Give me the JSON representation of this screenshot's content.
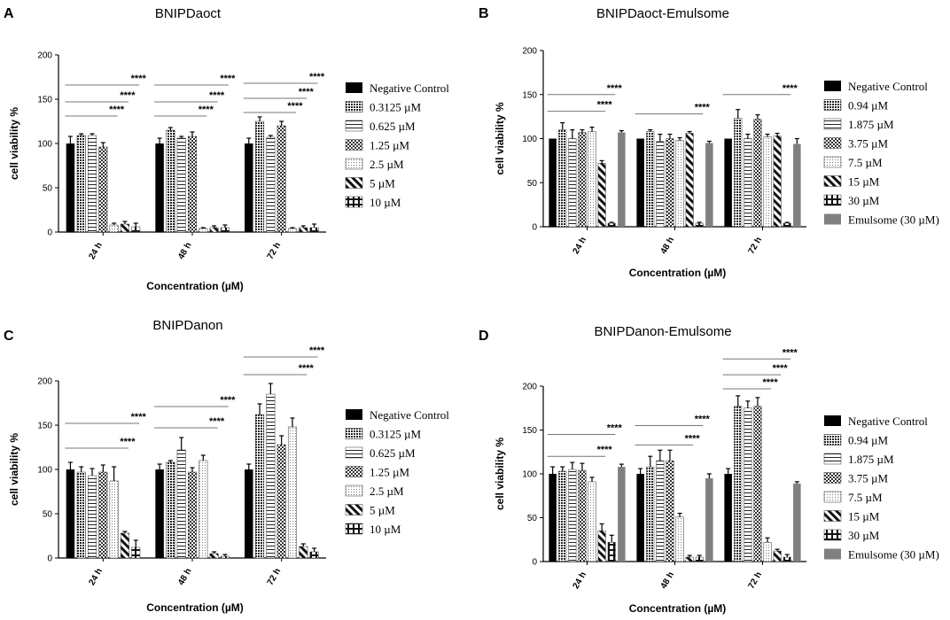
{
  "chart_data": [
    {
      "panel": "A",
      "type": "bar",
      "title": "BNIPDaoct",
      "xlabel": "Concentration (µM)",
      "ylabel": "cell viability %",
      "ylim": [
        0,
        200
      ],
      "yticks": [
        0,
        50,
        100,
        150,
        200
      ],
      "categories": [
        "24 h",
        "48 h",
        "72 h"
      ],
      "series": [
        {
          "name": "Negative Control",
          "pattern": "solid",
          "values": [
            100,
            100,
            100
          ],
          "errors": [
            8,
            6,
            6
          ]
        },
        {
          "name": "0.3125 µM",
          "pattern": "dots",
          "values": [
            109,
            115,
            125
          ],
          "errors": [
            2,
            3,
            5
          ]
        },
        {
          "name": "0.625 µM",
          "pattern": "hlines",
          "values": [
            109,
            106,
            107
          ],
          "errors": [
            2,
            2,
            2
          ]
        },
        {
          "name": "1.25 µM",
          "pattern": "checker",
          "values": [
            96,
            108,
            120
          ],
          "errors": [
            5,
            5,
            5
          ]
        },
        {
          "name": "2.5 µM",
          "pattern": "light",
          "values": [
            8,
            4,
            4
          ],
          "errors": [
            2,
            1,
            1
          ]
        },
        {
          "name": "5 µM",
          "pattern": "diag",
          "values": [
            9,
            5,
            5
          ],
          "errors": [
            3,
            2,
            2
          ]
        },
        {
          "name": "10 µM",
          "pattern": "cross",
          "values": [
            6,
            5,
            5
          ],
          "errors": [
            4,
            3,
            4
          ]
        }
      ],
      "significance": [
        {
          "group": 0,
          "from": 0,
          "to": 6,
          "y": 166,
          "label": "****"
        },
        {
          "group": 0,
          "from": 0,
          "to": 5,
          "y": 147,
          "label": "****"
        },
        {
          "group": 0,
          "from": 0,
          "to": 4,
          "y": 131,
          "label": "****"
        },
        {
          "group": 1,
          "from": 0,
          "to": 6,
          "y": 166,
          "label": "****"
        },
        {
          "group": 1,
          "from": 0,
          "to": 5,
          "y": 147,
          "label": "****"
        },
        {
          "group": 1,
          "from": 0,
          "to": 4,
          "y": 131,
          "label": "****"
        },
        {
          "group": 2,
          "from": 0,
          "to": 6,
          "y": 168,
          "label": "****"
        },
        {
          "group": 2,
          "from": 0,
          "to": 5,
          "y": 151,
          "label": "****"
        },
        {
          "group": 2,
          "from": 0,
          "to": 4,
          "y": 135,
          "label": "****"
        }
      ]
    },
    {
      "panel": "B",
      "type": "bar",
      "title": "BNIPDaoct-Emulsome",
      "xlabel": "Concentration (µM)",
      "ylabel": "cell viability %",
      "ylim": [
        0,
        200
      ],
      "yticks": [
        0,
        50,
        100,
        150,
        200
      ],
      "categories": [
        "24 h",
        "48 h",
        "72 h"
      ],
      "series": [
        {
          "name": "Negative Control",
          "pattern": "solid",
          "values": [
            100,
            100,
            100
          ],
          "errors": [
            0,
            0,
            0
          ]
        },
        {
          "name": "0.94 µM",
          "pattern": "dots",
          "values": [
            110,
            108,
            123
          ],
          "errors": [
            8,
            2,
            10
          ]
        },
        {
          "name": "1.875 µM",
          "pattern": "hlines",
          "values": [
            100,
            97,
            100
          ],
          "errors": [
            10,
            8,
            5
          ]
        },
        {
          "name": "3.75 µM",
          "pattern": "checker",
          "values": [
            107,
            100,
            122
          ],
          "errors": [
            3,
            5,
            5
          ]
        },
        {
          "name": "7.5 µM",
          "pattern": "light",
          "values": [
            108,
            98,
            102
          ],
          "errors": [
            5,
            3,
            3
          ]
        },
        {
          "name": "15 µM",
          "pattern": "diag",
          "values": [
            72,
            106,
            103
          ],
          "errors": [
            3,
            2,
            3
          ]
        },
        {
          "name": "30 µM",
          "pattern": "cross",
          "values": [
            4,
            4,
            4
          ],
          "errors": [
            1,
            1,
            1
          ]
        },
        {
          "name": "Emulsome (30 µM)",
          "pattern": "gray",
          "values": [
            107,
            95,
            94
          ],
          "errors": [
            2,
            2,
            6
          ]
        }
      ],
      "significance": [
        {
          "group": 0,
          "from": 0,
          "to": 6,
          "y": 150,
          "label": "****"
        },
        {
          "group": 0,
          "from": 0,
          "to": 5,
          "y": 131,
          "label": "****"
        },
        {
          "group": 1,
          "from": 0,
          "to": 6,
          "y": 128,
          "label": "****"
        },
        {
          "group": 2,
          "from": 0,
          "to": 6,
          "y": 150,
          "label": "****"
        }
      ]
    },
    {
      "panel": "C",
      "type": "bar",
      "title": "BNIPDanon",
      "xlabel": "Concentration (µM)",
      "ylabel": "cell viability %",
      "ylim": [
        0,
        200
      ],
      "yticks": [
        0,
        50,
        100,
        150,
        200
      ],
      "categories": [
        "24 h",
        "48 h",
        "72 h"
      ],
      "series": [
        {
          "name": "Negative Control",
          "pattern": "solid",
          "values": [
            100,
            100,
            100
          ],
          "errors": [
            8,
            6,
            6
          ]
        },
        {
          "name": "0.3125 µM",
          "pattern": "dots",
          "values": [
            97,
            108,
            162
          ],
          "errors": [
            6,
            2,
            12
          ]
        },
        {
          "name": "0.625 µM",
          "pattern": "hlines",
          "values": [
            93,
            122,
            185
          ],
          "errors": [
            8,
            14,
            12
          ]
        },
        {
          "name": "1.25 µM",
          "pattern": "checker",
          "values": [
            97,
            97,
            128
          ],
          "errors": [
            8,
            5,
            10
          ]
        },
        {
          "name": "2.5 µM",
          "pattern": "light",
          "values": [
            87,
            110,
            148
          ],
          "errors": [
            16,
            6,
            10
          ]
        },
        {
          "name": "5 µM",
          "pattern": "diag",
          "values": [
            28,
            5,
            13
          ],
          "errors": [
            2,
            2,
            3
          ]
        },
        {
          "name": "10 µM",
          "pattern": "cross",
          "values": [
            12,
            2,
            7
          ],
          "errors": [
            8,
            2,
            4
          ]
        }
      ],
      "significance": [
        {
          "group": 0,
          "from": 0,
          "to": 6,
          "y": 152,
          "label": "****"
        },
        {
          "group": 0,
          "from": 0,
          "to": 5,
          "y": 124,
          "label": "****"
        },
        {
          "group": 1,
          "from": 0,
          "to": 6,
          "y": 171,
          "label": "****"
        },
        {
          "group": 1,
          "from": 0,
          "to": 5,
          "y": 147,
          "label": "****"
        },
        {
          "group": 2,
          "from": 0,
          "to": 6,
          "y": 227,
          "label": "****"
        },
        {
          "group": 2,
          "from": 0,
          "to": 5,
          "y": 207,
          "label": "****"
        }
      ]
    },
    {
      "panel": "D",
      "type": "bar",
      "title": "BNIPDanon-Emulsome",
      "xlabel": "Concentration (µM)",
      "ylabel": "cell viability %",
      "ylim": [
        0,
        200
      ],
      "yticks": [
        0,
        50,
        100,
        150,
        200
      ],
      "categories": [
        "24 h",
        "48 h",
        "72 h"
      ],
      "series": [
        {
          "name": "Negative Control",
          "pattern": "solid",
          "values": [
            100,
            100,
            100
          ],
          "errors": [
            8,
            6,
            6
          ]
        },
        {
          "name": "0.94 µM",
          "pattern": "dots",
          "values": [
            103,
            108,
            177
          ],
          "errors": [
            5,
            12,
            12
          ]
        },
        {
          "name": "1.875 µM",
          "pattern": "hlines",
          "values": [
            105,
            115,
            175
          ],
          "errors": [
            8,
            12,
            8
          ]
        },
        {
          "name": "3.75 µM",
          "pattern": "checker",
          "values": [
            104,
            115,
            177
          ],
          "errors": [
            8,
            12,
            10
          ]
        },
        {
          "name": "7.5 µM",
          "pattern": "light",
          "values": [
            91,
            51,
            22
          ],
          "errors": [
            5,
            4,
            5
          ]
        },
        {
          "name": "15 µM",
          "pattern": "diag",
          "values": [
            35,
            5,
            12
          ],
          "errors": [
            8,
            2,
            2
          ]
        },
        {
          "name": "30 µM",
          "pattern": "cross",
          "values": [
            22,
            5,
            5
          ],
          "errors": [
            8,
            2,
            3
          ]
        },
        {
          "name": "Emulsome (30 µM)",
          "pattern": "gray",
          "values": [
            108,
            95,
            89
          ],
          "errors": [
            3,
            5,
            2
          ]
        }
      ],
      "significance": [
        {
          "group": 0,
          "from": 0,
          "to": 6,
          "y": 145,
          "label": "****"
        },
        {
          "group": 0,
          "from": 0,
          "to": 5,
          "y": 120,
          "label": "****"
        },
        {
          "group": 1,
          "from": 0,
          "to": 6,
          "y": 155,
          "label": "****"
        },
        {
          "group": 1,
          "from": 0,
          "to": 5,
          "y": 133,
          "label": "****"
        },
        {
          "group": 2,
          "from": 0,
          "to": 6,
          "y": 231,
          "label": "****"
        },
        {
          "group": 2,
          "from": 0,
          "to": 5,
          "y": 213,
          "label": "****"
        },
        {
          "group": 2,
          "from": 0,
          "to": 4,
          "y": 197,
          "label": "****"
        }
      ]
    }
  ]
}
